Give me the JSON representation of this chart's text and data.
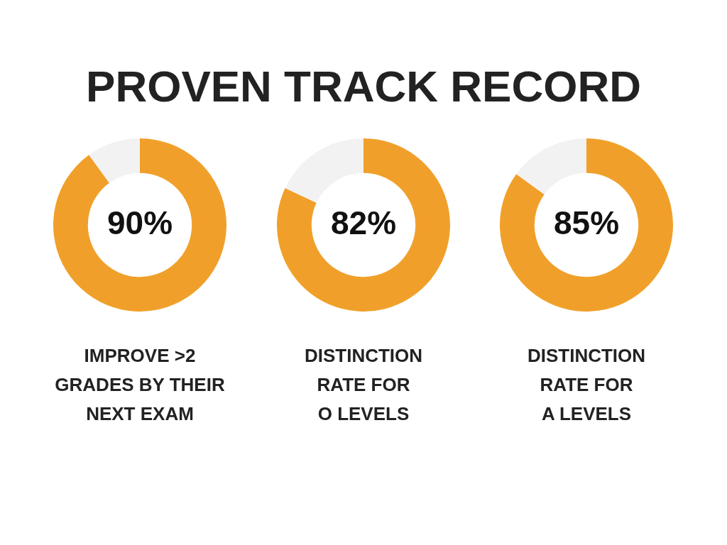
{
  "chart_data": [
    {
      "type": "donut",
      "title": "PROVEN TRACK RECORD",
      "xlabel": "IMPROVE >2\nGRADES BY THEIR\nNEXT EXAM",
      "categories": [
        null,
        null
      ],
      "values": [
        90,
        10
      ],
      "colors": [
        "#f0a02a",
        "#f2f2f2"
      ],
      "value_labels": [
        "90%",
        null
      ]
    },
    {
      "type": "donut",
      "xlabel": "DISTINCTION\nRATE FOR\nO LEVELS",
      "categories": [
        null,
        null
      ],
      "values": [
        82,
        18
      ],
      "colors": [
        "#f0a02a",
        "#f2f2f2"
      ],
      "value_labels": [
        "82%",
        null
      ]
    },
    {
      "type": "donut",
      "xlabel": "DISTINCTION\nRATE FOR\nA LEVELS",
      "categories": [
        null,
        null
      ],
      "values": [
        85,
        15
      ],
      "colors": [
        "#f0a02a",
        "#f2f2f2"
      ],
      "value_labels": [
        "85%",
        null
      ]
    }
  ]
}
